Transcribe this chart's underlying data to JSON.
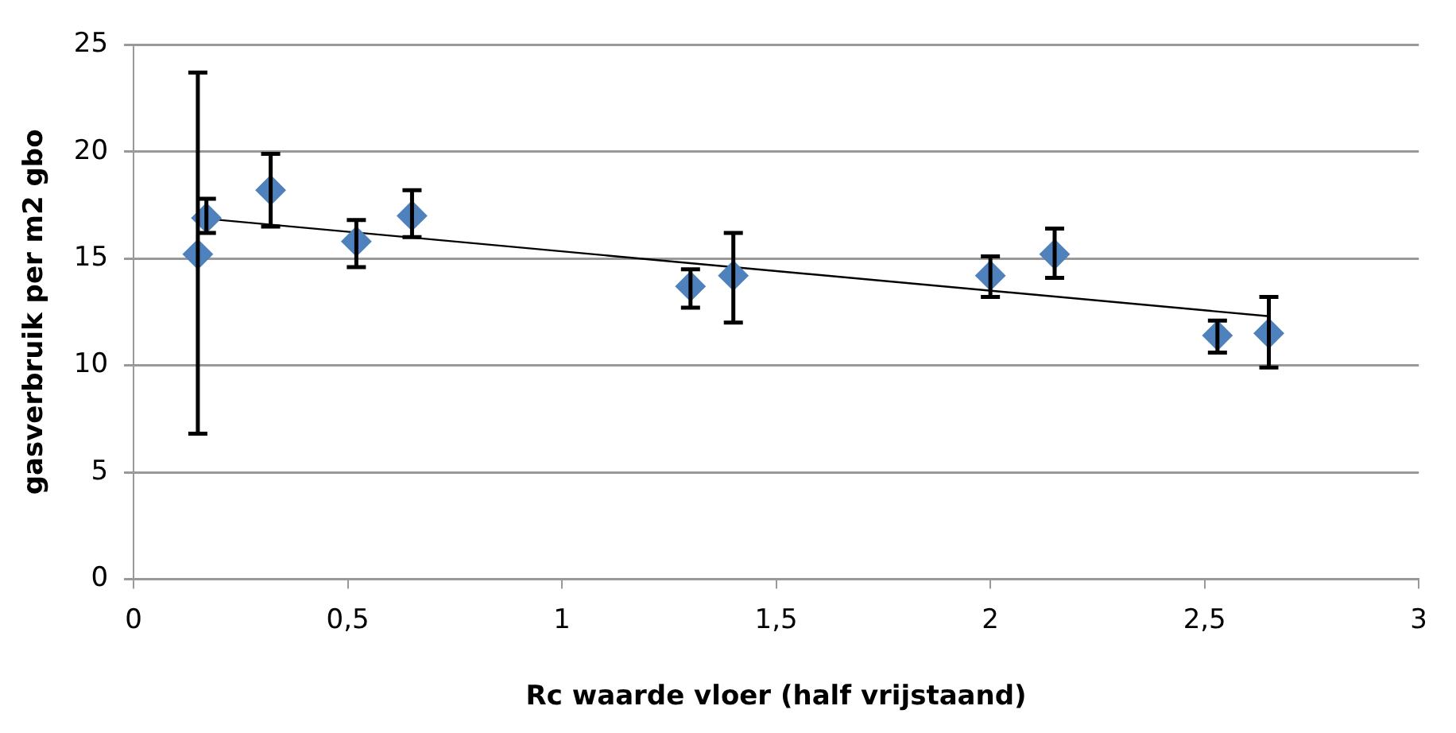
{
  "chart_data": {
    "type": "scatter",
    "xlabel": "Rc waarde vloer (half vrijstaand)",
    "ylabel": "gasverbruik per m2 gbo",
    "series": [
      {
        "color": "#4f81bd",
        "marker": "diamond",
        "x": [
          0.15,
          0.17,
          0.32,
          0.52,
          0.65,
          1.3,
          1.4,
          2.0,
          2.15,
          2.53,
          2.65
        ],
        "values": [
          15.2,
          16.9,
          18.2,
          15.8,
          17.0,
          13.7,
          14.2,
          14.2,
          15.2,
          11.4,
          11.5
        ],
        "errors": [
          [
            6.8,
            23.7
          ],
          [
            16.2,
            17.8
          ],
          [
            16.5,
            19.9
          ],
          [
            14.6,
            16.8
          ],
          [
            16.0,
            18.2
          ],
          [
            12.7,
            14.5
          ],
          [
            12.0,
            16.2
          ],
          [
            13.2,
            15.1
          ],
          [
            14.1,
            16.4
          ],
          [
            10.6,
            12.1
          ],
          [
            9.9,
            13.2
          ]
        ]
      },
      {
        "type": "line",
        "color": "#000000",
        "marker": "none",
        "x": [
          0.15,
          2.65
        ],
        "values": [
          16.9,
          12.3
        ]
      }
    ],
    "xlim": [
      0,
      3
    ],
    "xticks": [
      0,
      {
        "value": 0.5,
        "label": "0,5"
      },
      1,
      {
        "value": 1.5,
        "label": "1,5"
      },
      2,
      {
        "value": 2.5,
        "label": "2,5"
      },
      3
    ],
    "ylim": [
      0,
      25
    ],
    "yticks": [
      0,
      5,
      10,
      15,
      20,
      25
    ],
    "grid": "y",
    "legend": false
  }
}
